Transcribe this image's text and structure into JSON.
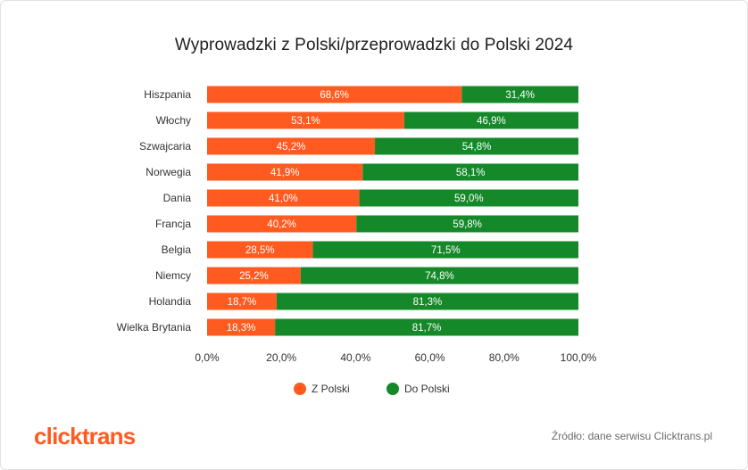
{
  "title": "Wyprowadzki z Polski/przeprowadzki do Polski 2024",
  "logo_text": "clicktrans",
  "source_text": "Źródło: dane serwisu Clicktrans.pl",
  "colors": {
    "z_polski": "#ff5a1f",
    "do_polski": "#15892a",
    "text": "#333333"
  },
  "chart_data": {
    "type": "bar",
    "orientation": "horizontal",
    "stacked": "100%",
    "title": "Wyprowadzki z Polski/przeprowadzki do Polski 2024",
    "categories": [
      "Hiszpania",
      "Włochy",
      "Szwajcaria",
      "Norwegia",
      "Dania",
      "Francja",
      "Belgia",
      "Niemcy",
      "Holandia",
      "Wielka Brytania"
    ],
    "series": [
      {
        "name": "Z Polski",
        "values": [
          68.6,
          53.1,
          45.2,
          41.9,
          41.0,
          40.2,
          28.5,
          25.2,
          18.7,
          18.3
        ],
        "labels": [
          "68,6%",
          "53,1%",
          "45,2%",
          "41,9%",
          "41,0%",
          "40,2%",
          "28,5%",
          "25,2%",
          "18,7%",
          "18,3%"
        ]
      },
      {
        "name": "Do Polski",
        "values": [
          31.4,
          46.9,
          54.8,
          58.1,
          59.0,
          59.8,
          71.5,
          74.8,
          81.3,
          81.7
        ],
        "labels": [
          "31,4%",
          "46,9%",
          "54,8%",
          "58,1%",
          "59,0%",
          "59,8%",
          "71,5%",
          "74,8%",
          "81,3%",
          "81,7%"
        ]
      }
    ],
    "xlim": [
      0,
      100
    ],
    "x_ticks": [
      0,
      20,
      40,
      60,
      80,
      100
    ],
    "x_tick_labels": [
      "0,0%",
      "20,0%",
      "40,0%",
      "60,0%",
      "80,0%",
      "100,0%"
    ],
    "grid": false,
    "legend_position": "bottom"
  }
}
